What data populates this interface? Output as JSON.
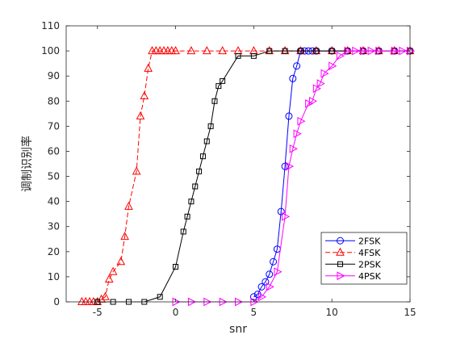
{
  "chart_data": {
    "type": "line",
    "xlabel": "snr",
    "ylabel": "调制识别率",
    "xlim": [
      -7,
      15
    ],
    "ylim": [
      0,
      110
    ],
    "xticks": [
      -5,
      0,
      5,
      10,
      15
    ],
    "yticks": [
      0,
      10,
      20,
      30,
      40,
      50,
      60,
      70,
      80,
      90,
      100,
      110
    ],
    "legend_position": "bottom-right",
    "grid": false,
    "series": [
      {
        "name": "2FSK",
        "color": "#0000ff",
        "line_style": "solid",
        "marker": "circle",
        "points": [
          [
            5,
            2
          ],
          [
            5.25,
            3
          ],
          [
            5.5,
            6
          ],
          [
            5.75,
            8
          ],
          [
            6,
            11
          ],
          [
            6.25,
            16
          ],
          [
            6.5,
            21
          ],
          [
            6.75,
            36
          ],
          [
            7,
            54
          ],
          [
            7.25,
            74
          ],
          [
            7.5,
            89
          ],
          [
            7.75,
            94
          ],
          [
            8,
            100
          ],
          [
            8.25,
            100
          ],
          [
            8.5,
            100
          ],
          [
            8.75,
            100
          ],
          [
            9,
            100
          ],
          [
            10,
            100
          ],
          [
            11,
            100
          ],
          [
            12,
            100
          ],
          [
            13,
            100
          ],
          [
            14,
            100
          ],
          [
            15,
            100
          ]
        ]
      },
      {
        "name": "4FSK",
        "color": "#ff0000",
        "line_style": "dashed",
        "marker": "triangle-up",
        "points": [
          [
            -6,
            0
          ],
          [
            -5.75,
            0
          ],
          [
            -5.5,
            0
          ],
          [
            -5.25,
            0
          ],
          [
            -5,
            0
          ],
          [
            -4.75,
            1
          ],
          [
            -4.5,
            2
          ],
          [
            -4.25,
            9
          ],
          [
            -4,
            12
          ],
          [
            -3.5,
            16
          ],
          [
            -3.25,
            26
          ],
          [
            -3,
            38
          ],
          [
            -2.5,
            52
          ],
          [
            -2.25,
            74
          ],
          [
            -2,
            82
          ],
          [
            -1.75,
            93
          ],
          [
            -1.5,
            100
          ],
          [
            -1.25,
            100
          ],
          [
            -1,
            100
          ],
          [
            -0.75,
            100
          ],
          [
            -0.5,
            100
          ],
          [
            -0.25,
            100
          ],
          [
            0,
            100
          ],
          [
            1,
            100
          ],
          [
            2,
            100
          ],
          [
            3,
            100
          ],
          [
            4,
            100
          ],
          [
            5,
            100
          ],
          [
            6,
            100
          ],
          [
            7,
            100
          ],
          [
            8,
            100
          ],
          [
            9,
            100
          ],
          [
            10,
            100
          ],
          [
            11,
            100
          ],
          [
            12,
            100
          ],
          [
            13,
            100
          ],
          [
            14,
            100
          ],
          [
            15,
            100
          ]
        ]
      },
      {
        "name": "2PSK",
        "color": "#000000",
        "line_style": "solid",
        "marker": "square",
        "points": [
          [
            -5,
            0
          ],
          [
            -4,
            0
          ],
          [
            -3,
            0
          ],
          [
            -2,
            0
          ],
          [
            -1,
            2
          ],
          [
            0,
            14
          ],
          [
            0.5,
            28
          ],
          [
            0.75,
            34
          ],
          [
            1,
            40
          ],
          [
            1.25,
            46
          ],
          [
            1.5,
            52
          ],
          [
            1.75,
            58
          ],
          [
            2,
            64
          ],
          [
            2.25,
            70
          ],
          [
            2.5,
            80
          ],
          [
            2.75,
            86
          ],
          [
            3,
            88
          ],
          [
            4,
            98
          ],
          [
            5,
            98
          ],
          [
            6,
            100
          ],
          [
            7,
            100
          ],
          [
            8,
            100
          ],
          [
            9,
            100
          ],
          [
            10,
            100
          ],
          [
            11,
            100
          ],
          [
            12,
            100
          ],
          [
            13,
            100
          ],
          [
            14,
            100
          ],
          [
            15,
            100
          ]
        ]
      },
      {
        "name": "4PSK",
        "color": "#ff00ff",
        "line_style": "solid",
        "marker": "triangle-right",
        "points": [
          [
            0,
            0
          ],
          [
            1,
            0
          ],
          [
            2,
            0
          ],
          [
            3,
            0
          ],
          [
            4,
            0
          ],
          [
            5,
            0
          ],
          [
            5.5,
            2
          ],
          [
            6,
            6
          ],
          [
            6.5,
            12
          ],
          [
            7,
            34
          ],
          [
            7.25,
            54
          ],
          [
            7.5,
            61
          ],
          [
            7.75,
            67
          ],
          [
            8,
            72
          ],
          [
            8.5,
            79
          ],
          [
            8.75,
            80
          ],
          [
            9,
            85
          ],
          [
            9.25,
            87
          ],
          [
            9.5,
            91
          ],
          [
            10,
            94
          ],
          [
            10.5,
            98
          ],
          [
            11,
            100
          ],
          [
            11.5,
            100
          ],
          [
            12,
            100
          ],
          [
            12.5,
            100
          ],
          [
            13,
            100
          ],
          [
            14,
            100
          ],
          [
            14.5,
            100
          ],
          [
            15,
            100
          ]
        ]
      }
    ]
  }
}
